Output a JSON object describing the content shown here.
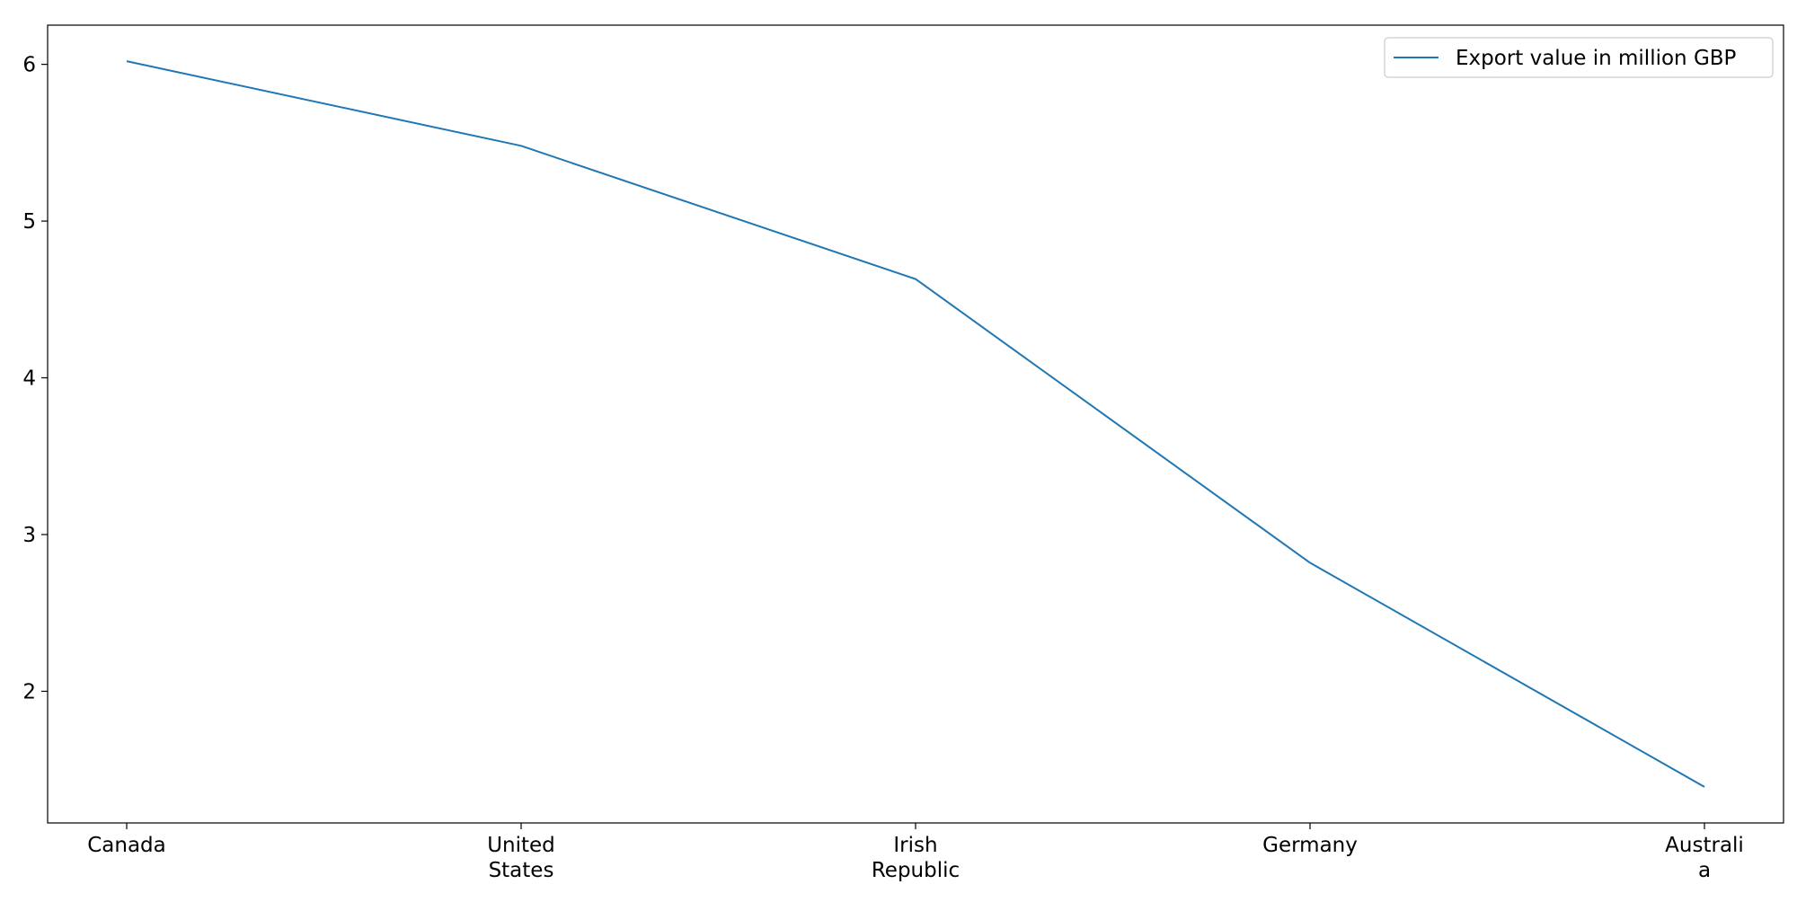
{
  "chart_data": {
    "type": "line",
    "title": "",
    "xlabel": "",
    "ylabel": "",
    "categories": [
      [
        "Canada"
      ],
      [
        "United",
        "States"
      ],
      [
        "Irish",
        "Republic"
      ],
      [
        "Germany"
      ],
      [
        "Australi",
        "a"
      ]
    ],
    "series": [
      {
        "name": "Export value in million GBP",
        "values": [
          6.02,
          5.48,
          4.63,
          2.82,
          1.39
        ],
        "color": "#1f77b4"
      }
    ],
    "yticks": [
      2,
      3,
      4,
      5,
      6
    ],
    "ylim": [
      1.16,
      6.25
    ],
    "grid": false,
    "legend": "top-right"
  }
}
